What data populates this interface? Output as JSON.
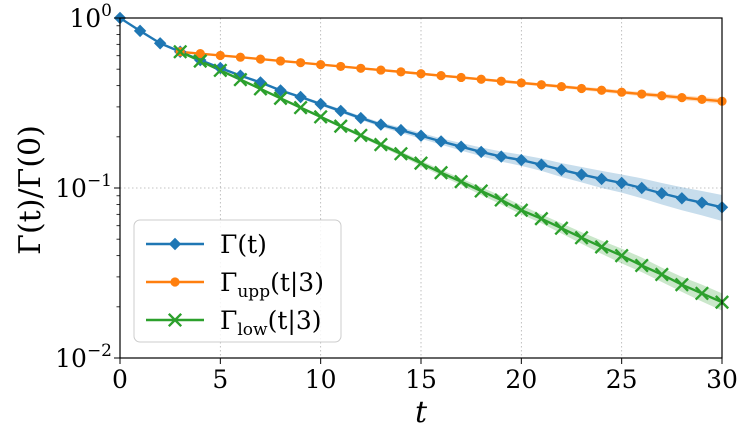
{
  "chart_data": {
    "type": "line",
    "xlabel": "t",
    "ylabel": "Γ(t)/Γ(0)",
    "yscale": "log",
    "xlim": [
      0,
      30
    ],
    "ylim": [
      0.01,
      1
    ],
    "grid": true,
    "legend_position": "bottom-left",
    "x_ticks": [
      0,
      5,
      10,
      15,
      20,
      25,
      30
    ],
    "y_ticks": [
      {
        "value": 1,
        "base": "10",
        "exp": "0"
      },
      {
        "value": 0.1,
        "base": "10",
        "exp": "−1"
      },
      {
        "value": 0.01,
        "base": "10",
        "exp": "−2"
      }
    ],
    "series": [
      {
        "name": "Γ(t)",
        "legend_main": "Γ(t)",
        "legend_sub": "",
        "legend_rest": "",
        "color": "#1f77b4",
        "marker": "diamond",
        "x": [
          0,
          1,
          2,
          3,
          4,
          5,
          6,
          7,
          8,
          9,
          10,
          11,
          12,
          13,
          14,
          15,
          16,
          17,
          18,
          19,
          20,
          21,
          22,
          23,
          24,
          25,
          26,
          27,
          28,
          29,
          30
        ],
        "values": [
          1.0,
          0.84,
          0.71,
          0.633,
          0.565,
          0.508,
          0.458,
          0.418,
          0.375,
          0.343,
          0.312,
          0.284,
          0.258,
          0.236,
          0.219,
          0.203,
          0.188,
          0.175,
          0.163,
          0.153,
          0.146,
          0.137,
          0.128,
          0.12,
          0.113,
          0.107,
          0.1,
          0.093,
          0.087,
          0.082,
          0.077
        ],
        "band_lower": [
          1.0,
          0.84,
          0.71,
          0.63,
          0.56,
          0.503,
          0.453,
          0.412,
          0.369,
          0.336,
          0.305,
          0.277,
          0.251,
          0.229,
          0.211,
          0.195,
          0.18,
          0.166,
          0.154,
          0.143,
          0.135,
          0.126,
          0.116,
          0.108,
          0.1,
          0.094,
          0.087,
          0.08,
          0.074,
          0.069,
          0.064
        ],
        "band_upper": [
          1.0,
          0.84,
          0.71,
          0.636,
          0.57,
          0.513,
          0.463,
          0.424,
          0.381,
          0.35,
          0.319,
          0.291,
          0.265,
          0.243,
          0.227,
          0.211,
          0.196,
          0.184,
          0.173,
          0.164,
          0.157,
          0.149,
          0.14,
          0.133,
          0.126,
          0.12,
          0.114,
          0.107,
          0.101,
          0.096,
          0.091
        ]
      },
      {
        "name": "Γupp(t|3)",
        "legend_main": "Γ",
        "legend_sub": "upp",
        "legend_rest": "(t|3)",
        "color": "#ff7f0e",
        "marker": "circle",
        "x": [
          3,
          4,
          5,
          6,
          7,
          8,
          9,
          10,
          11,
          12,
          13,
          14,
          15,
          16,
          17,
          18,
          19,
          20,
          21,
          22,
          23,
          24,
          25,
          26,
          27,
          28,
          29,
          30
        ],
        "values": [
          0.633,
          0.617,
          0.602,
          0.588,
          0.573,
          0.559,
          0.546,
          0.532,
          0.519,
          0.506,
          0.494,
          0.482,
          0.47,
          0.458,
          0.447,
          0.436,
          0.425,
          0.415,
          0.405,
          0.395,
          0.385,
          0.376,
          0.366,
          0.357,
          0.349,
          0.34,
          0.332,
          0.324
        ],
        "band_lower": [
          0.63,
          0.614,
          0.598,
          0.583,
          0.568,
          0.554,
          0.54,
          0.526,
          0.512,
          0.499,
          0.487,
          0.474,
          0.462,
          0.45,
          0.439,
          0.428,
          0.417,
          0.406,
          0.396,
          0.386,
          0.376,
          0.366,
          0.356,
          0.347,
          0.338,
          0.329,
          0.321,
          0.312
        ],
        "band_upper": [
          0.636,
          0.62,
          0.606,
          0.593,
          0.578,
          0.564,
          0.552,
          0.538,
          0.526,
          0.513,
          0.501,
          0.49,
          0.478,
          0.466,
          0.455,
          0.444,
          0.433,
          0.424,
          0.414,
          0.404,
          0.394,
          0.386,
          0.376,
          0.367,
          0.36,
          0.351,
          0.343,
          0.336
        ]
      },
      {
        "name": "Γlow(t|3)",
        "legend_main": "Γ",
        "legend_sub": "low",
        "legend_rest": "(t|3)",
        "color": "#2ca02c",
        "marker": "x",
        "x": [
          3,
          4,
          5,
          6,
          7,
          8,
          9,
          10,
          11,
          12,
          13,
          14,
          15,
          16,
          17,
          18,
          19,
          20,
          21,
          22,
          23,
          24,
          25,
          26,
          27,
          28,
          29,
          30
        ],
        "values": [
          0.633,
          0.558,
          0.492,
          0.434,
          0.383,
          0.337,
          0.297,
          0.262,
          0.231,
          0.204,
          0.18,
          0.159,
          0.14,
          0.123,
          0.109,
          0.096,
          0.085,
          0.074,
          0.066,
          0.058,
          0.051,
          0.045,
          0.04,
          0.035,
          0.031,
          0.027,
          0.024,
          0.0213
        ],
        "band_lower": [
          0.63,
          0.555,
          0.488,
          0.43,
          0.378,
          0.332,
          0.292,
          0.257,
          0.226,
          0.199,
          0.175,
          0.154,
          0.135,
          0.118,
          0.104,
          0.091,
          0.08,
          0.07,
          0.062,
          0.054,
          0.047,
          0.041,
          0.036,
          0.032,
          0.028,
          0.0245,
          0.0215,
          0.019
        ],
        "band_upper": [
          0.636,
          0.561,
          0.496,
          0.438,
          0.388,
          0.342,
          0.302,
          0.267,
          0.236,
          0.209,
          0.185,
          0.164,
          0.145,
          0.128,
          0.114,
          0.101,
          0.09,
          0.079,
          0.07,
          0.062,
          0.055,
          0.049,
          0.044,
          0.039,
          0.034,
          0.03,
          0.027,
          0.024
        ]
      }
    ]
  }
}
